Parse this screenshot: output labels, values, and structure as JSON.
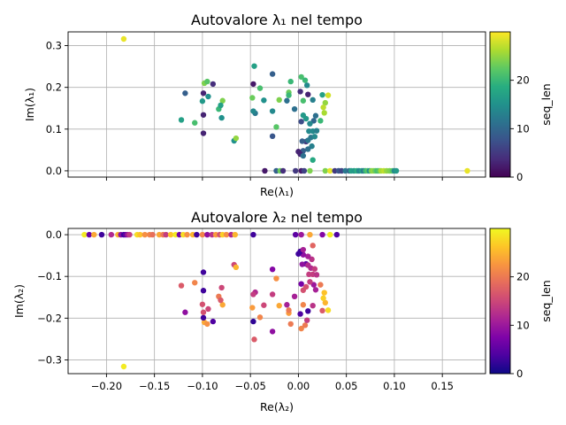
{
  "chart_data": [
    {
      "type": "scatter",
      "title": "Autovalore λ₁ nel tempo",
      "xlabel": "Re(λ₁)",
      "ylabel": "Im(λ₁)",
      "xlim": [
        -0.24,
        0.195
      ],
      "ylim": [
        -0.015,
        0.333
      ],
      "xticks": [
        -0.2,
        -0.15,
        -0.1,
        -0.05,
        0.0,
        0.05,
        0.1,
        0.15
      ],
      "xticklabels": [
        "",
        "",
        "",
        "",
        "",
        "",
        "",
        ""
      ],
      "yticks": [
        0.0,
        0.1,
        0.2,
        0.3
      ],
      "yticklabels": [
        "0.0",
        "0.1",
        "0.2",
        "0.3"
      ],
      "grid": true,
      "colorbar": {
        "label": "seq_len",
        "cmap": "viridis",
        "range": [
          0,
          30
        ],
        "ticks": [
          "0",
          "10",
          "20"
        ]
      },
      "points": [
        {
          "x": -0.182,
          "y": 0.316,
          "c": 29
        },
        {
          "x": 0.176,
          "y": 0.0,
          "c": 29
        },
        {
          "x": -0.118,
          "y": 0.186,
          "c": 9
        },
        {
          "x": -0.098,
          "y": 0.21,
          "c": 24
        },
        {
          "x": -0.095,
          "y": 0.214,
          "c": 22
        },
        {
          "x": -0.089,
          "y": 0.208,
          "c": 4
        },
        {
          "x": -0.099,
          "y": 0.186,
          "c": 3
        },
        {
          "x": -0.094,
          "y": 0.178,
          "c": 15
        },
        {
          "x": -0.1,
          "y": 0.167,
          "c": 16
        },
        {
          "x": -0.079,
          "y": 0.168,
          "c": 24
        },
        {
          "x": -0.083,
          "y": 0.148,
          "c": 20
        },
        {
          "x": -0.081,
          "y": 0.157,
          "c": 17
        },
        {
          "x": -0.08,
          "y": 0.127,
          "c": 15
        },
        {
          "x": -0.122,
          "y": 0.122,
          "c": 17
        },
        {
          "x": -0.108,
          "y": 0.115,
          "c": 21
        },
        {
          "x": -0.099,
          "y": 0.134,
          "c": 3
        },
        {
          "x": -0.099,
          "y": 0.09,
          "c": 3
        },
        {
          "x": -0.067,
          "y": 0.072,
          "c": 15
        },
        {
          "x": -0.065,
          "y": 0.078,
          "c": 25
        },
        {
          "x": -0.046,
          "y": 0.251,
          "c": 17
        },
        {
          "x": -0.047,
          "y": 0.208,
          "c": 2
        },
        {
          "x": -0.04,
          "y": 0.198,
          "c": 21
        },
        {
          "x": -0.048,
          "y": 0.175,
          "c": 23
        },
        {
          "x": -0.045,
          "y": 0.138,
          "c": 12
        },
        {
          "x": -0.047,
          "y": 0.143,
          "c": 14
        },
        {
          "x": -0.036,
          "y": 0.169,
          "c": 15
        },
        {
          "x": -0.027,
          "y": 0.232,
          "c": 9
        },
        {
          "x": -0.027,
          "y": 0.143,
          "c": 14
        },
        {
          "x": -0.027,
          "y": 0.083,
          "c": 8
        },
        {
          "x": -0.02,
          "y": 0.17,
          "c": 24
        },
        {
          "x": -0.023,
          "y": 0.105,
          "c": 22
        },
        {
          "x": -0.01,
          "y": 0.188,
          "c": 23
        },
        {
          "x": -0.01,
          "y": 0.181,
          "c": 20
        },
        {
          "x": -0.012,
          "y": 0.168,
          "c": 11
        },
        {
          "x": -0.008,
          "y": 0.214,
          "c": 20
        },
        {
          "x": -0.004,
          "y": 0.148,
          "c": 11
        },
        {
          "x": 0.003,
          "y": 0.225,
          "c": 21
        },
        {
          "x": 0.007,
          "y": 0.217,
          "c": 20
        },
        {
          "x": 0.009,
          "y": 0.205,
          "c": 14
        },
        {
          "x": 0.002,
          "y": 0.19,
          "c": 4
        },
        {
          "x": 0.01,
          "y": 0.183,
          "c": 3
        },
        {
          "x": 0.005,
          "y": 0.168,
          "c": 21
        },
        {
          "x": 0.015,
          "y": 0.17,
          "c": 13
        },
        {
          "x": 0.025,
          "y": 0.182,
          "c": 17
        },
        {
          "x": 0.028,
          "y": 0.163,
          "c": 25
        },
        {
          "x": 0.031,
          "y": 0.181,
          "c": 28
        },
        {
          "x": 0.026,
          "y": 0.152,
          "c": 27
        },
        {
          "x": 0.027,
          "y": 0.139,
          "c": 26
        },
        {
          "x": 0.023,
          "y": 0.12,
          "c": 20
        },
        {
          "x": 0.018,
          "y": 0.132,
          "c": 11
        },
        {
          "x": 0.016,
          "y": 0.12,
          "c": 10
        },
        {
          "x": 0.012,
          "y": 0.113,
          "c": 14
        },
        {
          "x": 0.005,
          "y": 0.133,
          "c": 16
        },
        {
          "x": 0.003,
          "y": 0.118,
          "c": 7
        },
        {
          "x": 0.008,
          "y": 0.125,
          "c": 16
        },
        {
          "x": 0.011,
          "y": 0.095,
          "c": 14
        },
        {
          "x": 0.015,
          "y": 0.095,
          "c": 14
        },
        {
          "x": 0.019,
          "y": 0.096,
          "c": 13
        },
        {
          "x": 0.013,
          "y": 0.08,
          "c": 12
        },
        {
          "x": 0.017,
          "y": 0.082,
          "c": 14
        },
        {
          "x": 0.008,
          "y": 0.07,
          "c": 5
        },
        {
          "x": 0.004,
          "y": 0.071,
          "c": 9
        },
        {
          "x": 0.01,
          "y": 0.073,
          "c": 12
        },
        {
          "x": 0.014,
          "y": 0.059,
          "c": 13
        },
        {
          "x": 0.01,
          "y": 0.052,
          "c": 11
        },
        {
          "x": 0.005,
          "y": 0.048,
          "c": 9
        },
        {
          "x": 0.0,
          "y": 0.046,
          "c": 3
        },
        {
          "x": 0.002,
          "y": 0.04,
          "c": 3
        },
        {
          "x": 0.005,
          "y": 0.036,
          "c": 11
        },
        {
          "x": 0.015,
          "y": 0.026,
          "c": 18
        },
        {
          "x": -0.035,
          "y": 0.0,
          "c": 2
        },
        {
          "x": -0.023,
          "y": 0.0,
          "c": 9
        },
        {
          "x": -0.019,
          "y": 0.0,
          "c": 23
        },
        {
          "x": -0.016,
          "y": 0.0,
          "c": 4
        },
        {
          "x": -0.003,
          "y": 0.0,
          "c": 5
        },
        {
          "x": 0.003,
          "y": 0.0,
          "c": 2
        },
        {
          "x": 0.006,
          "y": 0.0,
          "c": 6
        },
        {
          "x": 0.012,
          "y": 0.0,
          "c": 24
        },
        {
          "x": 0.028,
          "y": 0.0,
          "c": 24
        },
        {
          "x": 0.033,
          "y": 0.0,
          "c": 29
        },
        {
          "x": 0.038,
          "y": 0.0,
          "c": 5
        },
        {
          "x": 0.042,
          "y": 0.0,
          "c": 8
        },
        {
          "x": 0.045,
          "y": 0.0,
          "c": 6
        },
        {
          "x": 0.049,
          "y": 0.0,
          "c": 12
        },
        {
          "x": 0.053,
          "y": 0.0,
          "c": 10
        },
        {
          "x": 0.055,
          "y": 0.0,
          "c": 17
        },
        {
          "x": 0.058,
          "y": 0.0,
          "c": 16
        },
        {
          "x": 0.061,
          "y": 0.0,
          "c": 19
        },
        {
          "x": 0.063,
          "y": 0.0,
          "c": 14
        },
        {
          "x": 0.066,
          "y": 0.0,
          "c": 17
        },
        {
          "x": 0.068,
          "y": 0.0,
          "c": 12
        },
        {
          "x": 0.07,
          "y": 0.0,
          "c": 20
        },
        {
          "x": 0.072,
          "y": 0.0,
          "c": 22
        },
        {
          "x": 0.074,
          "y": 0.0,
          "c": 15
        },
        {
          "x": 0.076,
          "y": 0.0,
          "c": 24
        },
        {
          "x": 0.078,
          "y": 0.0,
          "c": 25
        },
        {
          "x": 0.08,
          "y": 0.0,
          "c": 23
        },
        {
          "x": 0.082,
          "y": 0.0,
          "c": 21
        },
        {
          "x": 0.084,
          "y": 0.0,
          "c": 22
        },
        {
          "x": 0.086,
          "y": 0.0,
          "c": 26
        },
        {
          "x": 0.089,
          "y": 0.0,
          "c": 27
        },
        {
          "x": 0.092,
          "y": 0.0,
          "c": 25
        },
        {
          "x": 0.095,
          "y": 0.0,
          "c": 24
        },
        {
          "x": 0.098,
          "y": 0.0,
          "c": 22
        },
        {
          "x": 0.1,
          "y": 0.0,
          "c": 14
        },
        {
          "x": 0.102,
          "y": 0.0,
          "c": 16
        }
      ]
    },
    {
      "type": "scatter",
      "title": "Autovalore λ₂ nel tempo",
      "xlabel": "Re(λ₂)",
      "ylabel": "Im(λ₂)",
      "xlim": [
        -0.24,
        0.195
      ],
      "ylim": [
        -0.333,
        0.015
      ],
      "xticks": [
        -0.2,
        -0.15,
        -0.1,
        -0.05,
        0.0,
        0.05,
        0.1,
        0.15
      ],
      "xticklabels": [
        "−0.20",
        "−0.15",
        "−0.10",
        "−0.05",
        "0.00",
        "0.05",
        "0.10",
        "0.15"
      ],
      "yticks": [
        0.0,
        -0.1,
        -0.2,
        -0.3
      ],
      "yticklabels": [
        "0.0",
        "−0.1",
        "−0.2",
        "−0.3"
      ],
      "grid": true,
      "colorbar": {
        "label": "seq_len",
        "cmap": "plasma",
        "range": [
          0,
          30
        ],
        "ticks": [
          "0",
          "10",
          "20"
        ]
      },
      "points": [
        {
          "x": -0.182,
          "y": -0.316,
          "c": 29
        },
        {
          "x": -0.223,
          "y": 0.0,
          "c": 29
        },
        {
          "x": -0.218,
          "y": 0.0,
          "c": 6
        },
        {
          "x": -0.213,
          "y": 0.0,
          "c": 24
        },
        {
          "x": -0.205,
          "y": 0.0,
          "c": 3
        },
        {
          "x": -0.195,
          "y": 0.0,
          "c": 12
        },
        {
          "x": -0.188,
          "y": 0.0,
          "c": 25
        },
        {
          "x": -0.185,
          "y": 0.0,
          "c": 9
        },
        {
          "x": -0.182,
          "y": 0.0,
          "c": 3
        },
        {
          "x": -0.18,
          "y": 0.0,
          "c": 5
        },
        {
          "x": -0.178,
          "y": 0.0,
          "c": 10
        },
        {
          "x": -0.176,
          "y": 0.0,
          "c": 14
        },
        {
          "x": -0.168,
          "y": 0.0,
          "c": 28
        },
        {
          "x": -0.165,
          "y": 0.0,
          "c": 26
        },
        {
          "x": -0.16,
          "y": 0.0,
          "c": 22
        },
        {
          "x": -0.155,
          "y": 0.0,
          "c": 21
        },
        {
          "x": -0.152,
          "y": 0.0,
          "c": 19
        },
        {
          "x": -0.145,
          "y": 0.0,
          "c": 24
        },
        {
          "x": -0.141,
          "y": 0.0,
          "c": 20
        },
        {
          "x": -0.138,
          "y": 0.0,
          "c": 14
        },
        {
          "x": -0.133,
          "y": 0.0,
          "c": 26
        },
        {
          "x": -0.128,
          "y": 0.0,
          "c": 29
        },
        {
          "x": -0.124,
          "y": 0.0,
          "c": 7
        },
        {
          "x": -0.12,
          "y": 0.0,
          "c": 28
        },
        {
          "x": -0.116,
          "y": 0.0,
          "c": 22
        },
        {
          "x": -0.11,
          "y": 0.0,
          "c": 25
        },
        {
          "x": -0.106,
          "y": 0.0,
          "c": 3
        },
        {
          "x": -0.1,
          "y": 0.0,
          "c": 21
        },
        {
          "x": -0.095,
          "y": 0.0,
          "c": 9
        },
        {
          "x": -0.09,
          "y": 0.0,
          "c": 13
        },
        {
          "x": -0.086,
          "y": 0.0,
          "c": 23
        },
        {
          "x": -0.082,
          "y": 0.0,
          "c": 16
        },
        {
          "x": -0.079,
          "y": 0.0,
          "c": 27
        },
        {
          "x": -0.075,
          "y": 0.0,
          "c": 22
        },
        {
          "x": -0.07,
          "y": 0.0,
          "c": 12
        },
        {
          "x": -0.066,
          "y": 0.0,
          "c": 25
        },
        {
          "x": -0.047,
          "y": 0.0,
          "c": 3
        },
        {
          "x": -0.003,
          "y": 0.0,
          "c": 5
        },
        {
          "x": 0.003,
          "y": 0.0,
          "c": 10
        },
        {
          "x": 0.012,
          "y": 0.0,
          "c": 24
        },
        {
          "x": 0.025,
          "y": 0.0,
          "c": 8
        },
        {
          "x": 0.033,
          "y": 0.0,
          "c": 29
        },
        {
          "x": 0.04,
          "y": 0.0,
          "c": 4
        },
        {
          "x": -0.118,
          "y": -0.186,
          "c": 9
        },
        {
          "x": -0.098,
          "y": -0.21,
          "c": 24
        },
        {
          "x": -0.095,
          "y": -0.214,
          "c": 22
        },
        {
          "x": -0.089,
          "y": -0.208,
          "c": 4
        },
        {
          "x": -0.099,
          "y": -0.199,
          "c": 3
        },
        {
          "x": -0.099,
          "y": -0.186,
          "c": 16
        },
        {
          "x": -0.094,
          "y": -0.178,
          "c": 15
        },
        {
          "x": -0.1,
          "y": -0.167,
          "c": 16
        },
        {
          "x": -0.079,
          "y": -0.168,
          "c": 24
        },
        {
          "x": -0.083,
          "y": -0.148,
          "c": 20
        },
        {
          "x": -0.081,
          "y": -0.157,
          "c": 17
        },
        {
          "x": -0.08,
          "y": -0.127,
          "c": 15
        },
        {
          "x": -0.122,
          "y": -0.122,
          "c": 17
        },
        {
          "x": -0.108,
          "y": -0.115,
          "c": 21
        },
        {
          "x": -0.099,
          "y": -0.134,
          "c": 3
        },
        {
          "x": -0.099,
          "y": -0.09,
          "c": 3
        },
        {
          "x": -0.067,
          "y": -0.072,
          "c": 15
        },
        {
          "x": -0.065,
          "y": -0.078,
          "c": 25
        },
        {
          "x": -0.046,
          "y": -0.251,
          "c": 17
        },
        {
          "x": -0.047,
          "y": -0.208,
          "c": 2
        },
        {
          "x": -0.04,
          "y": -0.198,
          "c": 21
        },
        {
          "x": -0.048,
          "y": -0.175,
          "c": 23
        },
        {
          "x": -0.045,
          "y": -0.138,
          "c": 12
        },
        {
          "x": -0.047,
          "y": -0.143,
          "c": 14
        },
        {
          "x": -0.036,
          "y": -0.169,
          "c": 15
        },
        {
          "x": -0.027,
          "y": -0.232,
          "c": 9
        },
        {
          "x": -0.027,
          "y": -0.143,
          "c": 14
        },
        {
          "x": -0.027,
          "y": -0.083,
          "c": 8
        },
        {
          "x": -0.02,
          "y": -0.17,
          "c": 24
        },
        {
          "x": -0.023,
          "y": -0.105,
          "c": 22
        },
        {
          "x": -0.01,
          "y": -0.188,
          "c": 23
        },
        {
          "x": -0.01,
          "y": -0.181,
          "c": 20
        },
        {
          "x": -0.012,
          "y": -0.168,
          "c": 11
        },
        {
          "x": -0.008,
          "y": -0.214,
          "c": 20
        },
        {
          "x": -0.004,
          "y": -0.148,
          "c": 11
        },
        {
          "x": 0.003,
          "y": -0.225,
          "c": 21
        },
        {
          "x": 0.007,
          "y": -0.217,
          "c": 20
        },
        {
          "x": 0.009,
          "y": -0.205,
          "c": 14
        },
        {
          "x": 0.002,
          "y": -0.19,
          "c": 4
        },
        {
          "x": 0.01,
          "y": -0.183,
          "c": 3
        },
        {
          "x": 0.005,
          "y": -0.168,
          "c": 21
        },
        {
          "x": 0.015,
          "y": -0.17,
          "c": 13
        },
        {
          "x": 0.025,
          "y": -0.182,
          "c": 17
        },
        {
          "x": 0.028,
          "y": -0.163,
          "c": 25
        },
        {
          "x": 0.031,
          "y": -0.181,
          "c": 28
        },
        {
          "x": 0.026,
          "y": -0.152,
          "c": 27
        },
        {
          "x": 0.027,
          "y": -0.139,
          "c": 26
        },
        {
          "x": 0.023,
          "y": -0.12,
          "c": 20
        },
        {
          "x": 0.018,
          "y": -0.132,
          "c": 11
        },
        {
          "x": 0.016,
          "y": -0.12,
          "c": 10
        },
        {
          "x": 0.012,
          "y": -0.113,
          "c": 14
        },
        {
          "x": 0.005,
          "y": -0.133,
          "c": 16
        },
        {
          "x": 0.003,
          "y": -0.118,
          "c": 7
        },
        {
          "x": 0.008,
          "y": -0.125,
          "c": 16
        },
        {
          "x": 0.011,
          "y": -0.095,
          "c": 14
        },
        {
          "x": 0.015,
          "y": -0.095,
          "c": 14
        },
        {
          "x": 0.019,
          "y": -0.096,
          "c": 13
        },
        {
          "x": 0.013,
          "y": -0.08,
          "c": 12
        },
        {
          "x": 0.017,
          "y": -0.082,
          "c": 14
        },
        {
          "x": 0.008,
          "y": -0.07,
          "c": 5
        },
        {
          "x": 0.004,
          "y": -0.071,
          "c": 9
        },
        {
          "x": 0.01,
          "y": -0.073,
          "c": 12
        },
        {
          "x": 0.014,
          "y": -0.059,
          "c": 13
        },
        {
          "x": 0.01,
          "y": -0.052,
          "c": 11
        },
        {
          "x": 0.005,
          "y": -0.048,
          "c": 9
        },
        {
          "x": 0.0,
          "y": -0.046,
          "c": 3
        },
        {
          "x": 0.002,
          "y": -0.04,
          "c": 3
        },
        {
          "x": 0.005,
          "y": -0.036,
          "c": 11
        },
        {
          "x": 0.015,
          "y": -0.026,
          "c": 18
        }
      ]
    }
  ]
}
